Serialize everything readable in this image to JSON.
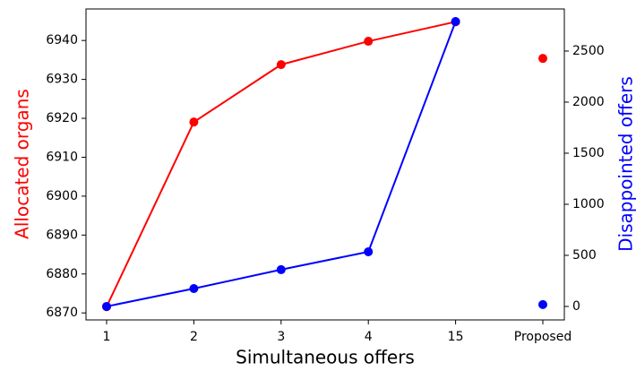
{
  "chart_data": {
    "type": "line",
    "xlabel": "Simultaneous offers",
    "ylabel": "Allocated organs",
    "y2label": "Disappointed offers",
    "ylabel_color": "red",
    "y2label_color": "blue",
    "categories": [
      "1",
      "2",
      "3",
      "4",
      "15",
      "Proposed"
    ],
    "series": [
      {
        "color": "red",
        "line": true,
        "values": [
          6871.6,
          6919.05,
          6933.8,
          6939.8,
          6944.8,
          null
        ]
      },
      {
        "color": "red",
        "line": false,
        "values": [
          null,
          null,
          null,
          null,
          null,
          6935.4
        ]
      },
      {
        "color": "blue",
        "line": true,
        "axis": "y2",
        "values": [
          0,
          175,
          360,
          535,
          2789,
          null
        ]
      },
      {
        "color": "blue",
        "line": false,
        "axis": "y2",
        "values": [
          null,
          null,
          null,
          null,
          null,
          18
        ]
      }
    ],
    "ylim": [
      6868.2,
      6948.1
    ],
    "yticks": [
      6870,
      6880,
      6890,
      6900,
      6910,
      6920,
      6930,
      6940
    ],
    "y2lim": [
      -132,
      2912
    ],
    "y2ticks": [
      0,
      500,
      1000,
      1500,
      2000,
      2500
    ]
  }
}
